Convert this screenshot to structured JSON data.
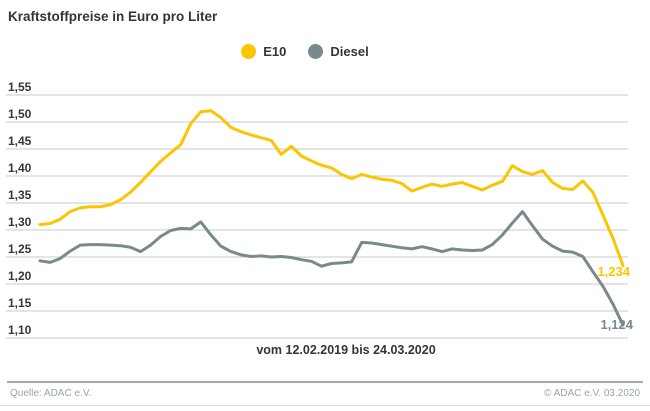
{
  "header": {
    "title": "Kraftstoffpreise in Euro pro Liter"
  },
  "chart_data": {
    "type": "line",
    "title": "Kraftstoffpreise in Euro pro Liter",
    "ylabel": "Euro pro Liter",
    "x_range_label": "vom 12.02.2019 bis 24.03.2020",
    "ylim": [
      1.1,
      1.55
    ],
    "grid": true,
    "legend_position": "top-center",
    "y_ticks": [
      {
        "label": "1,55",
        "value": 1.55
      },
      {
        "label": "1,50",
        "value": 1.5
      },
      {
        "label": "1,45",
        "value": 1.45
      },
      {
        "label": "1,40",
        "value": 1.4
      },
      {
        "label": "1,35",
        "value": 1.35
      },
      {
        "label": "1,30",
        "value": 1.3
      },
      {
        "label": "1,25",
        "value": 1.25
      },
      {
        "label": "1,20",
        "value": 1.2
      },
      {
        "label": "1,15",
        "value": 1.15
      },
      {
        "label": "1,10",
        "value": 1.1
      }
    ],
    "series": [
      {
        "name": "E10",
        "color": "#fbc500",
        "end_label": "1,234",
        "final_value": 1.234,
        "values": [
          1.31,
          1.312,
          1.32,
          1.334,
          1.341,
          1.343,
          1.343,
          1.347,
          1.356,
          1.37,
          1.388,
          1.408,
          1.427,
          1.443,
          1.458,
          1.497,
          1.519,
          1.521,
          1.508,
          1.49,
          1.482,
          1.476,
          1.471,
          1.466,
          1.44,
          1.455,
          1.437,
          1.428,
          1.42,
          1.415,
          1.403,
          1.395,
          1.403,
          1.398,
          1.394,
          1.392,
          1.386,
          1.372,
          1.379,
          1.385,
          1.381,
          1.385,
          1.388,
          1.381,
          1.374,
          1.383,
          1.39,
          1.419,
          1.408,
          1.403,
          1.41,
          1.388,
          1.377,
          1.375,
          1.391,
          1.37,
          1.328,
          1.285,
          1.234
        ]
      },
      {
        "name": "Diesel",
        "color": "#798a8c",
        "end_label": "1,124",
        "final_value": 1.124,
        "values": [
          1.243,
          1.24,
          1.247,
          1.261,
          1.272,
          1.273,
          1.273,
          1.272,
          1.271,
          1.268,
          1.26,
          1.272,
          1.288,
          1.299,
          1.303,
          1.302,
          1.315,
          1.291,
          1.27,
          1.26,
          1.254,
          1.251,
          1.252,
          1.25,
          1.251,
          1.249,
          1.245,
          1.242,
          1.233,
          1.238,
          1.239,
          1.241,
          1.277,
          1.276,
          1.273,
          1.27,
          1.267,
          1.265,
          1.269,
          1.265,
          1.26,
          1.265,
          1.263,
          1.262,
          1.263,
          1.273,
          1.291,
          1.313,
          1.334,
          1.308,
          1.283,
          1.27,
          1.261,
          1.259,
          1.251,
          1.223,
          1.196,
          1.163,
          1.124
        ]
      }
    ]
  },
  "footer": {
    "source": "Quelle: ADAC e.V.",
    "copyright": "© ADAC e.V.  03.2020"
  }
}
